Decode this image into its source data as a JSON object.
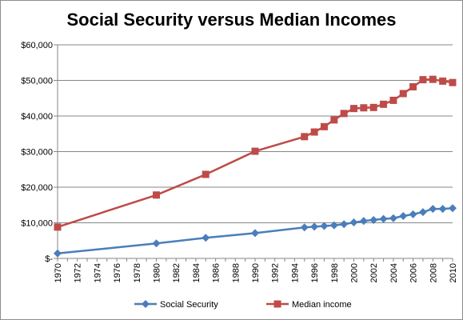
{
  "chart_data": {
    "type": "line",
    "title": "Social Security versus Median Incomes",
    "xlabel": "",
    "ylabel": "",
    "xlim": [
      1970,
      2010
    ],
    "ylim": [
      0,
      60000
    ],
    "y_ticks": [
      0,
      10000,
      20000,
      30000,
      40000,
      50000,
      60000
    ],
    "y_tick_labels": [
      "$-",
      "$10,000",
      "$20,000",
      "$30,000",
      "$40,000",
      "$50,000",
      "$60,000"
    ],
    "x_ticks": [
      1970,
      1972,
      1974,
      1976,
      1978,
      1980,
      1982,
      1984,
      1986,
      1988,
      1990,
      1992,
      1994,
      1996,
      1998,
      2000,
      2002,
      2004,
      2006,
      2008,
      2010
    ],
    "x_tick_labels": [
      "1970",
      "1972",
      "1974",
      "1976",
      "1978",
      "1980",
      "1982",
      "1984",
      "1986",
      "1988",
      "1990",
      "1992",
      "1994",
      "1996",
      "1998",
      "2000",
      "2002",
      "2004",
      "2006",
      "2008",
      "2010"
    ],
    "grid": "horizontal",
    "legend_position": "bottom",
    "series": [
      {
        "name": "Social Security",
        "color": "#4a7ebb",
        "marker": "diamond",
        "x": [
          1970,
          1980,
          1985,
          1990,
          1995,
          1996,
          1997,
          1998,
          1999,
          2000,
          2001,
          2002,
          2003,
          2004,
          2005,
          2006,
          2007,
          2008,
          2009,
          2010
        ],
        "values": [
          1400,
          4200,
          5800,
          7100,
          8700,
          8900,
          9100,
          9300,
          9600,
          10100,
          10500,
          10800,
          11100,
          11300,
          11900,
          12400,
          13000,
          13900,
          13900,
          14100
        ]
      },
      {
        "name": "Median income",
        "color": "#be4b48",
        "marker": "square",
        "x": [
          1970,
          1980,
          1985,
          1990,
          1995,
          1996,
          1997,
          1998,
          1999,
          2000,
          2001,
          2002,
          2003,
          2004,
          2005,
          2006,
          2007,
          2008,
          2009,
          2010
        ],
        "values": [
          8800,
          17800,
          23600,
          30100,
          34200,
          35500,
          37000,
          38900,
          40700,
          42100,
          42300,
          42400,
          43300,
          44400,
          46300,
          48200,
          50200,
          50300,
          49800,
          49400
        ]
      }
    ]
  }
}
